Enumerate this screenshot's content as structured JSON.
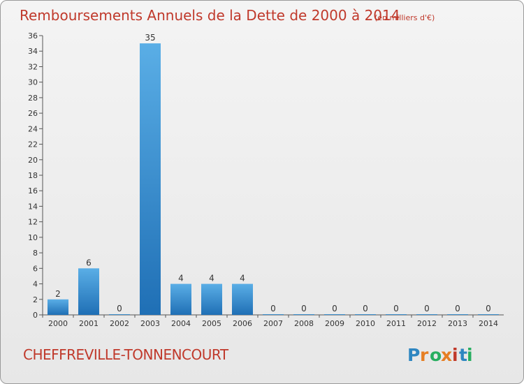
{
  "title": "Remboursements Annuels de la Dette de 2000 à 2014",
  "subtitle": "(en milliers d'€)",
  "location": "CHEFFREVILLE-TONNENCOURT",
  "logo": "Proxiti",
  "colors": {
    "title": "#c0392b",
    "bar_top": "#5aaee6",
    "bar_bottom": "#1f6fb5",
    "logo_letters": [
      "#2e86c1",
      "#e67e22",
      "#27ae60",
      "#e67e22",
      "#c0392b",
      "#2e86c1",
      "#27ae60"
    ]
  },
  "chart_data": {
    "type": "bar",
    "title": "Remboursements Annuels de la Dette de 2000 à 2014",
    "subtitle": "(en milliers d'€)",
    "categories": [
      "2000",
      "2001",
      "2002",
      "2003",
      "2004",
      "2005",
      "2006",
      "2007",
      "2008",
      "2009",
      "2010",
      "2011",
      "2012",
      "2013",
      "2014"
    ],
    "values": [
      2,
      6,
      0,
      35,
      4,
      4,
      4,
      0,
      0,
      0,
      0,
      0,
      0,
      0,
      0
    ],
    "ylim": [
      0,
      36
    ],
    "yticks": [
      0,
      2,
      4,
      6,
      8,
      10,
      12,
      14,
      16,
      18,
      20,
      22,
      24,
      26,
      28,
      30,
      32,
      34,
      36
    ],
    "grid": false,
    "legend": "none"
  }
}
